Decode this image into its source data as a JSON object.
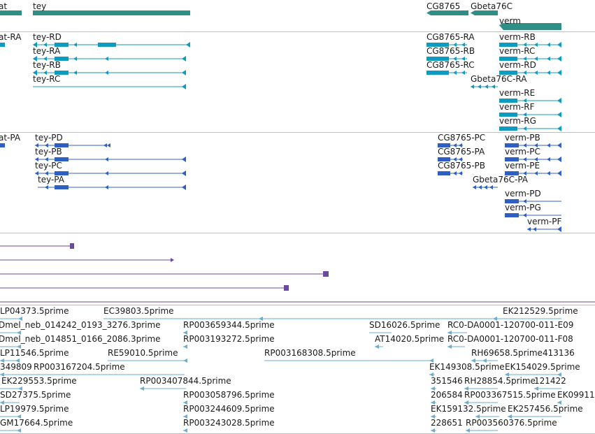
{
  "colors": {
    "gene": "#2f8e86",
    "transcript": "#0f9bbf",
    "protein": "#2f5fc4",
    "alignment": "#6a4a9e",
    "est": "#6aaed6",
    "separator": "#bdbdbd"
  },
  "tracks": {
    "genes": {
      "labels": [
        "at",
        "tey",
        "CG8765",
        "Gbeta76C",
        "verm"
      ]
    },
    "transcripts": {
      "labels": [
        "at-RA",
        "tey-RD",
        "tey-RA",
        "tey-RB",
        "tey-RC",
        "CG8765-RA",
        "CG8765-RB",
        "CG8765-RC",
        "Gbeta76C-RA",
        "verm-RB",
        "verm-RC",
        "verm-RD",
        "verm-RE",
        "verm-RF",
        "verm-RG"
      ]
    },
    "proteins": {
      "labels": [
        "at-PA",
        "tey-PD",
        "tey-PB",
        "tey-PC",
        "tey-PA",
        "CG8765-PC",
        "CG8765-PA",
        "CG8765-PB",
        "Gbeta76C-PA",
        "verm-PB",
        "verm-PC",
        "verm-PE",
        "verm-PD",
        "verm-PG",
        "verm-PF"
      ]
    },
    "ests": {
      "labels": [
        "LP04373.5prime",
        "EC39803.5prime",
        "EK212529.5prime",
        "Dmel_neb_014242_0193_3276.3prime",
        "RP003659344.5prime",
        "SD16026.5prime",
        "RC0-DA0001-120700-011-E09",
        "Dmel_neb_014851_0166_2086.3prime",
        "RP003193272.5prime",
        "AT14020.5prime",
        "RC0-DA0001-120700-011-F08",
        "LP11546.5prime",
        "RE59010.5prime",
        "RP003168308.5prime",
        "RH69658.5prime",
        "413136",
        "349809",
        "RP003167204.5prime",
        "EK149308.5prime",
        "EK154029.5prime",
        "EK229553.5prime",
        "RP003407844.5prime",
        "351546",
        "RH28854.5prime",
        "121422",
        "SD27375.5prime",
        "RP003058796.5prime",
        "206584",
        "RP003367515.5prime",
        "EK09911",
        "LP19979.5prime",
        "RP003244609.5prime",
        "EK159132.5prime",
        "EK257456.5prime",
        "GM17664.5prime",
        "RP003243028.5prime",
        "228651",
        "RP003560376.5prime"
      ]
    }
  }
}
